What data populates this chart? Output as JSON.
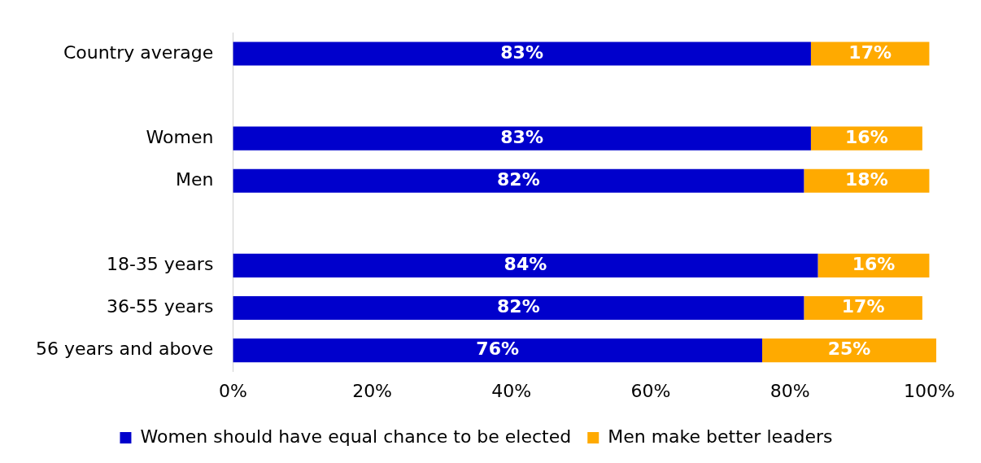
{
  "chart_data": {
    "type": "bar",
    "orientation": "horizontal",
    "stacked": true,
    "categories": [
      "Country average",
      null,
      "Women",
      "Men",
      null,
      "18-35 years",
      "36-55 years",
      "56 years and above"
    ],
    "series": [
      {
        "name": "Women should have equal chance to be elected",
        "color": "#0000cc",
        "values": [
          83,
          null,
          83,
          82,
          null,
          84,
          82,
          76
        ],
        "value_labels": [
          "83%",
          null,
          "83%",
          "82%",
          null,
          "84%",
          "82%",
          "76%"
        ]
      },
      {
        "name": "Men make better leaders",
        "color": "#ffaa00",
        "values": [
          17,
          null,
          16,
          18,
          null,
          16,
          17,
          25
        ],
        "value_labels": [
          "17%",
          null,
          "16%",
          "18%",
          null,
          "16%",
          "17%",
          "25%"
        ]
      }
    ],
    "xlim": [
      0,
      101
    ],
    "xticks": [
      {
        "value": 0,
        "label": "0%"
      },
      {
        "value": 20,
        "label": "20%"
      },
      {
        "value": 40,
        "label": "40%"
      },
      {
        "value": 60,
        "label": "60%"
      },
      {
        "value": 80,
        "label": "80%"
      },
      {
        "value": 100,
        "label": "100%"
      }
    ],
    "grid": false,
    "legend": "bottom"
  }
}
